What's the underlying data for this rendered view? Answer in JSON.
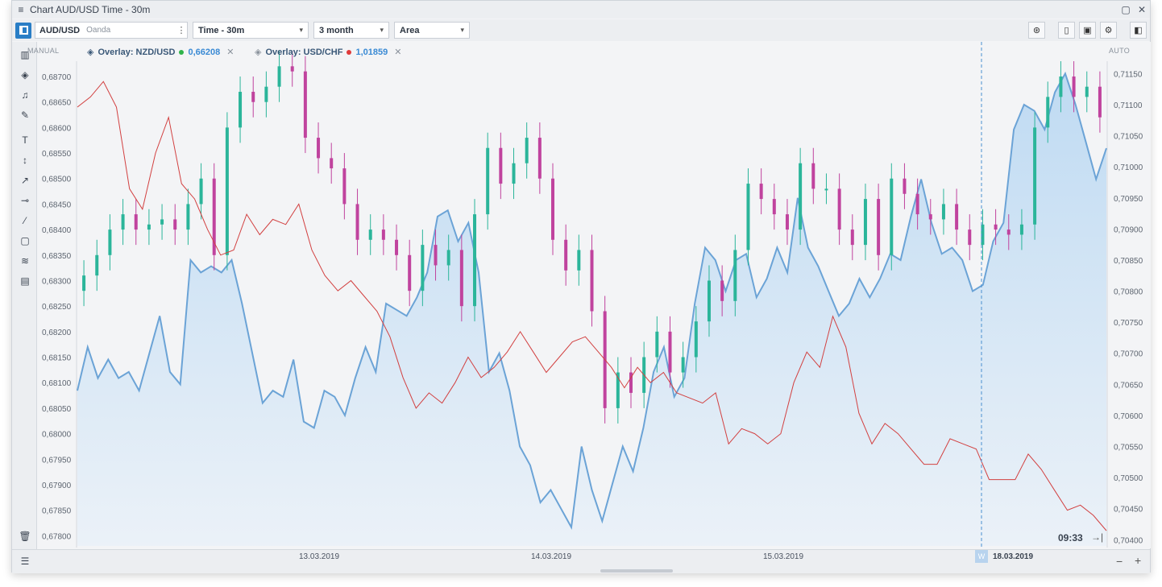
{
  "window": {
    "title": "Chart AUD/USD Time - 30m",
    "menu_icon": "hamburger-icon",
    "maximize_icon": "maximize-icon",
    "close_icon": "close-icon"
  },
  "toolbar": {
    "symbol": "AUD/USD",
    "source": "Oanda",
    "timeframe": "Time - 30m",
    "range": "3 month",
    "chart_type": "Area",
    "right_icons": [
      "analysis-icon",
      "mouse-icon",
      "template-icon",
      "gear-icon",
      "panel-icon"
    ]
  },
  "chart": {
    "manual_label": "MANUAL",
    "auto_label": "AUTO",
    "overlays": [
      {
        "name": "Overlay: NZD/USD",
        "value": "0,66208",
        "color": "#2fb34a"
      },
      {
        "name": "Overlay: USD/CHF",
        "value": "1,01859",
        "color": "#e03a3a"
      }
    ],
    "left_axis_labels": [
      "0,68700",
      "0,68650",
      "0,68600",
      "0,68550",
      "0,68500",
      "0,68450",
      "0,68400",
      "0,68350",
      "0,68300",
      "0,68250",
      "0,68200",
      "0,68150",
      "0,68100",
      "0,68050",
      "0,68000",
      "0,67950",
      "0,67900",
      "0,67850",
      "0,67800"
    ],
    "right_axis_labels": [
      "0,71150",
      "0,71100",
      "0,71050",
      "0,71000",
      "0,70950",
      "0,70900",
      "0,70850",
      "0,70800",
      "0,70750",
      "0,70700",
      "0,70650",
      "0,70600",
      "0,70550",
      "0,70500",
      "0,70450",
      "0,70400"
    ],
    "date_labels": [
      "13.03.2019",
      "14.03.2019",
      "15.03.2019",
      "18.03.2019"
    ],
    "week_badge": "W",
    "time_badge": "09:33",
    "colors": {
      "area": "#6ba3d6",
      "area_fill": "#cfe3f5",
      "bull": "#2bb59a",
      "bear": "#c0439e",
      "usdchf": "#d24040"
    }
  },
  "chart_data": {
    "type": "area",
    "title": "Chart AUD/USD Time - 30m",
    "xlabel": "",
    "ylabel": "",
    "x_ticks": [
      "13.03.2019",
      "14.03.2019",
      "15.03.2019",
      "18.03.2019"
    ],
    "ylim_left": [
      0.6778,
      0.6873
    ],
    "ylim_right": [
      0.7039,
      0.7117
    ],
    "series": [
      {
        "name": "Overlay: NZD/USD",
        "axis": "right",
        "values": [
          0.7064,
          0.7071,
          0.7066,
          0.7069,
          0.7066,
          0.7067,
          0.7064,
          0.707,
          0.7076,
          0.7067,
          0.7065,
          0.7085,
          0.7083,
          0.7084,
          0.7083,
          0.7085,
          0.7078,
          0.707,
          0.7062,
          0.7064,
          0.7063,
          0.7069,
          0.7059,
          0.7058,
          0.7064,
          0.7063,
          0.706,
          0.7066,
          0.7071,
          0.7067,
          0.7078,
          0.7077,
          0.7076,
          0.7079,
          0.7083,
          0.7092,
          0.7093,
          0.7088,
          0.7091,
          0.7083,
          0.7067,
          0.707,
          0.7064,
          0.7055,
          0.7052,
          0.7046,
          0.7048,
          0.7045,
          0.7042,
          0.7055,
          0.7048,
          0.7043,
          0.7049,
          0.7055,
          0.7051,
          0.7058,
          0.7067,
          0.7071,
          0.7063,
          0.7066,
          0.7078,
          0.7087,
          0.7085,
          0.708,
          0.7085,
          0.7086,
          0.7079,
          0.7082,
          0.7087,
          0.7083,
          0.7095,
          0.7087,
          0.7084,
          0.708,
          0.7076,
          0.7078,
          0.7082,
          0.7079,
          0.7082,
          0.7086,
          0.7085,
          0.7092,
          0.7098,
          0.7091,
          0.7086,
          0.7087,
          0.7085,
          0.708,
          0.7081,
          0.7088,
          0.7091,
          0.7106,
          0.711,
          0.7109,
          0.7106,
          0.7112,
          0.7115,
          0.711,
          0.7104,
          0.7098,
          0.7103
        ]
      },
      {
        "name": "Overlay: USD/CHF",
        "axis": "left",
        "values": [
          0.6864,
          0.6866,
          0.6869,
          0.6864,
          0.6848,
          0.6844,
          0.6855,
          0.6862,
          0.6849,
          0.6846,
          0.684,
          0.6835,
          0.6836,
          0.6843,
          0.6839,
          0.6842,
          0.6841,
          0.6845,
          0.6836,
          0.6831,
          0.6828,
          0.683,
          0.6827,
          0.6824,
          0.6819,
          0.6811,
          0.6805,
          0.6808,
          0.6806,
          0.681,
          0.6815,
          0.6811,
          0.6813,
          0.6816,
          0.682,
          0.6816,
          0.6812,
          0.6815,
          0.6818,
          0.6819,
          0.6816,
          0.6813,
          0.6809,
          0.6813,
          0.681,
          0.6812,
          0.6808,
          0.6807,
          0.6806,
          0.6808,
          0.6798,
          0.6801,
          0.68,
          0.6798,
          0.68,
          0.681,
          0.6816,
          0.6813,
          0.6823,
          0.6817,
          0.6804,
          0.6798,
          0.6802,
          0.68,
          0.6797,
          0.6794,
          0.6794,
          0.6799,
          0.6798,
          0.6797,
          0.6791,
          0.6791,
          0.6791,
          0.6796,
          0.6793,
          0.6789,
          0.6785,
          0.6786,
          0.6784,
          0.6781
        ]
      },
      {
        "name": "AUD/USD",
        "axis": "left",
        "type": "candlestick",
        "values": [
          0.6831,
          0.6835,
          0.684,
          0.6843,
          0.684,
          0.6841,
          0.6842,
          0.684,
          0.6845,
          0.685,
          0.6835,
          0.686,
          0.6867,
          0.6865,
          0.6868,
          0.6872,
          0.6871,
          0.6858,
          0.6854,
          0.6852,
          0.6845,
          0.6838,
          0.684,
          0.6838,
          0.6835,
          0.6828,
          0.6837,
          0.6833,
          0.6836,
          0.6825,
          0.6843,
          0.6856,
          0.6849,
          0.6853,
          0.6858,
          0.685,
          0.6838,
          0.6832,
          0.6836,
          0.6824,
          0.6805,
          0.6812,
          0.6808,
          0.6815,
          0.682,
          0.6812,
          0.6815,
          0.6822,
          0.683,
          0.6826,
          0.6836,
          0.6849,
          0.6846,
          0.6843,
          0.684,
          0.6853,
          0.6848,
          0.6848,
          0.684,
          0.6837,
          0.6846,
          0.6835,
          0.685,
          0.6847,
          0.6843,
          0.6842,
          0.6845,
          0.684,
          0.6837,
          0.6841,
          0.684,
          0.6839,
          0.6841,
          0.686,
          0.6866,
          0.687,
          0.6866,
          0.6868,
          0.6862
        ]
      }
    ]
  }
}
